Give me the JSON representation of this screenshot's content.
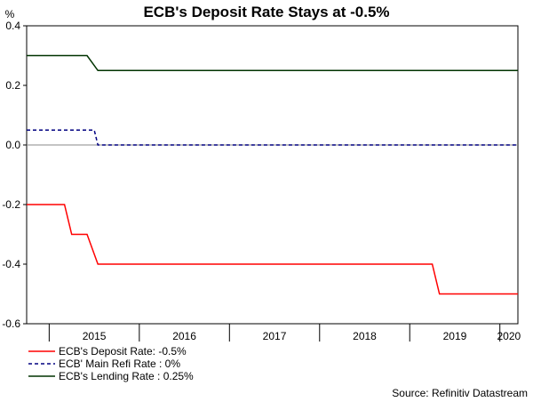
{
  "chart_data": {
    "type": "line",
    "title": "ECB's Deposit Rate Stays at -0.5%",
    "ylabel": "%",
    "xlabel": "",
    "ylim": [
      -0.6,
      0.4
    ],
    "yticks": [
      -0.6,
      -0.4,
      -0.2,
      0.0,
      0.2,
      0.4
    ],
    "ytick_labels": [
      "-0.6",
      "-0.4",
      "-0.2",
      "0.0",
      "0.2",
      "0.4"
    ],
    "xlim": [
      2014.75,
      2020.2
    ],
    "xticks": [
      2015,
      2016,
      2017,
      2018,
      2019,
      2020
    ],
    "xtick_labels": [
      "2015",
      "2016",
      "2017",
      "2018",
      "2019",
      "2020"
    ],
    "grid": false,
    "legend_position": "bottom-left",
    "source": "Source: Refinitiv Datastream",
    "series": [
      {
        "name": "ECB's Deposit Rate: -0.5%",
        "color": "#ff0000",
        "style": "solid",
        "x": [
          2014.75,
          2015.17,
          2015.25,
          2015.42,
          2015.54,
          2019.25,
          2019.33,
          2020.2
        ],
        "values": [
          -0.2,
          -0.2,
          -0.3,
          -0.3,
          -0.4,
          -0.4,
          -0.5,
          -0.5
        ]
      },
      {
        "name": "ECB' Main Refi Rate : 0%",
        "color": "#000080",
        "style": "dashed",
        "x": [
          2014.75,
          2015.5,
          2015.54,
          2020.2
        ],
        "values": [
          0.05,
          0.05,
          0.0,
          0.0
        ]
      },
      {
        "name": "ECB's Lending Rate : 0.25%",
        "color": "#003300",
        "style": "solid",
        "x": [
          2014.75,
          2015.42,
          2015.54,
          2020.2
        ],
        "values": [
          0.3,
          0.3,
          0.25,
          0.25
        ]
      }
    ]
  }
}
